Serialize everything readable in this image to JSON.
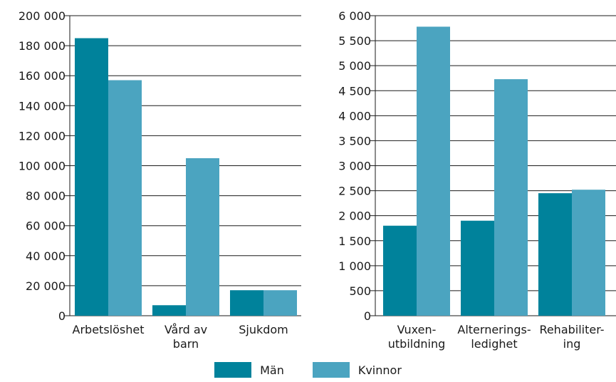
{
  "colors": {
    "man": "#00829b",
    "woman": "#4ba4c0",
    "grid": "#1a1a1a"
  },
  "legend": {
    "man_label": "Män",
    "woman_label": "Kvinnor"
  },
  "chart_data": [
    {
      "type": "bar",
      "categories": [
        "Arbetslöshet",
        "Vård av barn",
        "Sjukdom"
      ],
      "category_lines": [
        [
          "Arbetslöshet"
        ],
        [
          "Vård av",
          "barn"
        ],
        [
          "Sjukdom"
        ]
      ],
      "series": [
        {
          "name": "Män",
          "values": [
            185000,
            7000,
            17000
          ]
        },
        {
          "name": "Kvinnor",
          "values": [
            157000,
            105000,
            17000
          ]
        }
      ],
      "ylim": [
        0,
        200000
      ],
      "yticks": [
        0,
        20000,
        40000,
        60000,
        80000,
        100000,
        120000,
        140000,
        160000,
        180000,
        200000
      ],
      "ytick_labels": [
        "0",
        "20 000",
        "40 000",
        "60 000",
        "80 000",
        "100 000",
        "120 000",
        "140 000",
        "160 000",
        "180 000",
        "200 000"
      ],
      "grid": true
    },
    {
      "type": "bar",
      "categories": [
        "Vuxen-utbildning",
        "Alternerings-ledighet",
        "Rehabiliter-ing"
      ],
      "category_lines": [
        [
          "Vuxen-",
          "utbildning"
        ],
        [
          "Alternerings-",
          "ledighet"
        ],
        [
          "Rehabiliter-",
          "ing"
        ]
      ],
      "series": [
        {
          "name": "Män",
          "values": [
            1800,
            1900,
            2450
          ]
        },
        {
          "name": "Kvinnor",
          "values": [
            5780,
            4730,
            2520
          ]
        }
      ],
      "ylim": [
        0,
        6000
      ],
      "yticks": [
        0,
        500,
        1000,
        1500,
        2000,
        2500,
        3000,
        3500,
        4000,
        4500,
        5000,
        5500,
        6000
      ],
      "ytick_labels": [
        "0",
        "500",
        "1 000",
        "1 500",
        "2 000",
        "2 500",
        "3 000",
        "3 500",
        "4 000",
        "4 500",
        "5 000",
        "5 500",
        "6 000"
      ],
      "grid": true
    }
  ]
}
